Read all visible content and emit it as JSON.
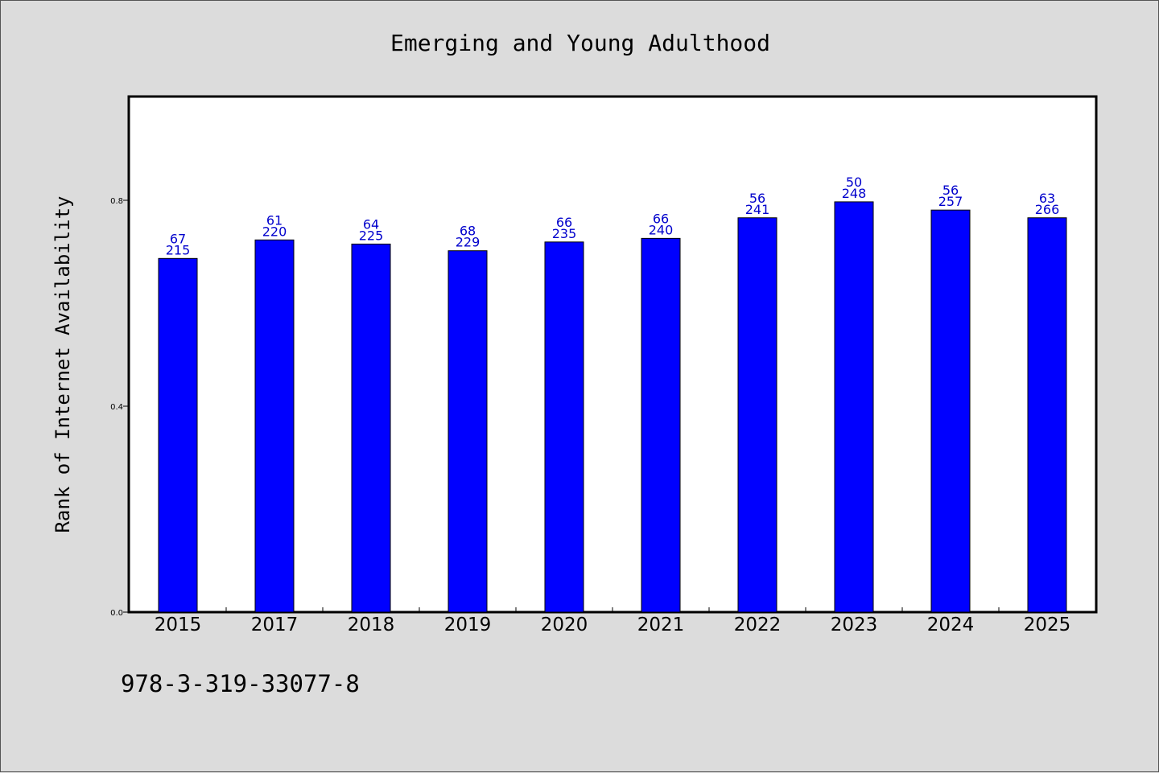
{
  "footnote": "978-3-319-33077-8",
  "colors": {
    "background": "#dcdcdc",
    "plot_background": "#ffffff",
    "bar": "#0000ff",
    "data_label": "#0000cc"
  },
  "chart_data": {
    "type": "bar",
    "title": "Emerging and Young Adulthood",
    "xlabel": "",
    "ylabel": "Rank of Internet Availability",
    "categories": [
      "2015",
      "2017",
      "2018",
      "2019",
      "2020",
      "2021",
      "2022",
      "2023",
      "2024",
      "2025"
    ],
    "values": [
      0.687,
      0.723,
      0.715,
      0.702,
      0.719,
      0.726,
      0.766,
      0.797,
      0.781,
      0.766
    ],
    "labels_top": [
      "67",
      "61",
      "64",
      "68",
      "66",
      "66",
      "56",
      "50",
      "56",
      "63"
    ],
    "labels_bottom": [
      "215",
      "220",
      "225",
      "229",
      "235",
      "240",
      "241",
      "248",
      "257",
      "266"
    ],
    "ylim": [
      0,
      1.0
    ],
    "yticks": [
      0.0,
      0.4,
      0.8
    ],
    "ytick_labels": [
      "0.0",
      "0.4",
      "0.8"
    ],
    "grid": false,
    "legend": "none"
  }
}
